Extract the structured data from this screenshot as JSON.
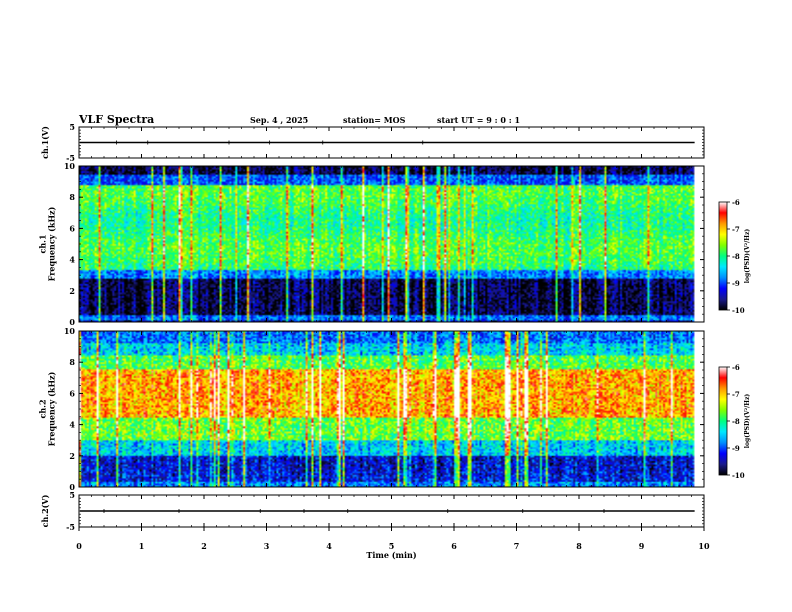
{
  "header": {
    "title": "VLF Spectra",
    "date": "Sep. 4 , 2025",
    "station": "station= MOS",
    "start": "start  UT =  9 : 0 : 1"
  },
  "colors": {
    "spectrum_stops": [
      "#000000",
      "#1a1a8c",
      "#0000ff",
      "#0090ff",
      "#00e8ff",
      "#00ff80",
      "#80ff00",
      "#ffff00",
      "#ff9900",
      "#ff0000",
      "#ffffff"
    ],
    "trace": "#000000"
  },
  "chart_data": [
    {
      "id": "ch1-waveform",
      "type": "line",
      "ylabel": "ch.1(V)",
      "ylim": [
        -5,
        5
      ],
      "y_ticks": [
        "5",
        "-5"
      ],
      "x_range": [
        0,
        10
      ],
      "trace_level": 0,
      "trace_end": 9.85,
      "spikes_at": [
        0.6,
        1.1,
        2.4,
        3.05,
        3.9,
        5.5
      ]
    },
    {
      "id": "ch1-spectrogram",
      "type": "heatmap",
      "ylabel": "ch.1\nFrequency (kHz)",
      "ylim": [
        0,
        10
      ],
      "y_ticks": [
        "0",
        "2",
        "4",
        "6",
        "8",
        "10"
      ],
      "x_range": [
        0,
        10
      ],
      "data_end": 9.85,
      "pattern": "black background; green/yellow emission band ~3-9 kHz; dark 0-3 kHz with blue line near 0.3 kHz; many vertical sferic streaks",
      "colorbar": {
        "label": "log(PSD)(V²/Hz)",
        "ticks": [
          "-6",
          "-7",
          "-8",
          "-9",
          "-10"
        ]
      }
    },
    {
      "id": "ch2-spectrogram",
      "type": "heatmap",
      "ylabel": "ch.2\nFrequency (kHz)",
      "ylim": [
        0,
        10
      ],
      "y_ticks": [
        "0",
        "2",
        "4",
        "6",
        "8",
        "10"
      ],
      "x_range": [
        0,
        10
      ],
      "data_end": 9.85,
      "pattern": "broad red/orange band ~4.5-7.5 kHz, green/yellow 3-4.5 and 7.5-8.5, cyan/blue top, dark blue 0-2 kHz",
      "colorbar": {
        "label": "log(PSD)(V²/Hz)",
        "ticks": [
          "-6",
          "-7",
          "-8",
          "-9",
          "-10"
        ]
      }
    },
    {
      "id": "ch2-waveform",
      "type": "line",
      "ylabel": "ch.2(V)",
      "ylim": [
        -5,
        5
      ],
      "y_ticks": [
        "5",
        "-5"
      ],
      "x_range": [
        0,
        10
      ],
      "trace_level": 0,
      "trace_end": 9.85,
      "spikes_at": [
        0.4,
        1.6,
        2.9,
        3.6,
        4.3,
        5.9,
        7.1,
        8.4
      ]
    }
  ],
  "x_axis": {
    "label": "Time (min)",
    "ticks": [
      "0",
      "1",
      "2",
      "3",
      "4",
      "5",
      "6",
      "7",
      "8",
      "9",
      "10"
    ]
  }
}
